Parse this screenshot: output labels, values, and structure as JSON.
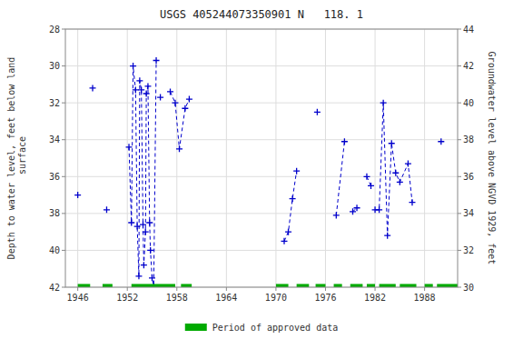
{
  "chart_data": {
    "type": "line",
    "title": "USGS 405244073350901 N   118. 1",
    "ylabel": "Depth to water level, feet below land\n surface",
    "y2label": "Groundwater level above NGVD 1929, feet",
    "xlim": [
      1944.5,
      1992
    ],
    "xticks": [
      1946,
      1952,
      1958,
      1964,
      1970,
      1976,
      1982,
      1988
    ],
    "ylim": [
      42,
      28
    ],
    "yticks": [
      28,
      30,
      32,
      34,
      36,
      38,
      40,
      42
    ],
    "y2lim": [
      30,
      44
    ],
    "y2ticks": [
      44,
      42,
      40,
      38,
      36,
      34,
      32,
      30
    ],
    "grid": true,
    "series": [
      {
        "type": "line",
        "color": "#0000cc",
        "marker": "plus",
        "line_style": "dashed",
        "x": [
          1946.0,
          null,
          1947.8,
          null,
          1949.5,
          null,
          1952.2,
          1952.5,
          1952.7,
          1953.0,
          1953.2,
          1953.4,
          1953.5,
          1953.7,
          1953.9,
          1954.0,
          1954.2,
          1954.3,
          1954.5,
          1954.7,
          1954.8,
          1955.0,
          1955.2,
          1955.5,
          null,
          1956.0,
          null,
          1957.2,
          1957.8,
          1958.3,
          1959.0,
          1959.5,
          null,
          1971.0,
          1971.5,
          1972.0,
          1972.5,
          null,
          1975.0,
          null,
          1977.3,
          1978.3,
          null,
          1979.3,
          1979.8,
          null,
          1981.0,
          1981.5,
          null,
          1982.0,
          1982.5,
          1983.0,
          1983.5,
          1984.0,
          1984.5,
          1985.0,
          1986.0,
          1986.5,
          null,
          1990.0
        ],
        "values": [
          37.0,
          null,
          31.2,
          null,
          37.8,
          null,
          34.4,
          38.5,
          30.0,
          31.3,
          38.7,
          41.4,
          30.8,
          31.3,
          38.6,
          40.8,
          39.0,
          31.5,
          31.1,
          38.5,
          40.0,
          41.5,
          41.9,
          29.7,
          null,
          31.7,
          null,
          31.4,
          32.0,
          34.5,
          32.3,
          31.8,
          null,
          39.5,
          39.0,
          37.2,
          35.7,
          null,
          32.5,
          null,
          38.1,
          34.1,
          null,
          37.9,
          37.7,
          null,
          36.0,
          36.5,
          null,
          37.8,
          37.8,
          32.0,
          39.2,
          34.2,
          35.8,
          36.3,
          35.3,
          37.4,
          null,
          34.1
        ]
      },
      {
        "type": "range_bar",
        "name": "Period of approved data",
        "color": "#00aa00",
        "y": 42,
        "ranges": [
          [
            1946.0,
            1947.5
          ],
          [
            1949.0,
            1950.2
          ],
          [
            1952.5,
            1957.8
          ],
          [
            1958.5,
            1959.8
          ],
          [
            1970.0,
            1971.5
          ],
          [
            1972.5,
            1974.0
          ],
          [
            1974.8,
            1976.0
          ],
          [
            1977.0,
            1978.0
          ],
          [
            1979.0,
            1980.5
          ],
          [
            1981.0,
            1982.0
          ],
          [
            1982.5,
            1984.5
          ],
          [
            1985.0,
            1987.0
          ],
          [
            1988.0,
            1989.0
          ],
          [
            1989.5,
            1992.0
          ]
        ]
      }
    ]
  }
}
